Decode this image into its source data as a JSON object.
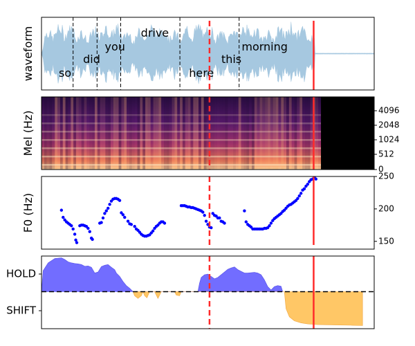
{
  "colors": {
    "waveform": "#a6c8e0",
    "f0_points": "#0000ff",
    "hold_fill": "#6b66ff",
    "shift_fill": "#ffc766",
    "marker": "#ff2a2a",
    "frame": "#000000"
  },
  "chart_data": [
    {
      "type": "area",
      "panel": "waveform",
      "ylabel": "waveform",
      "x_range": [
        0,
        100
      ],
      "y_range": [
        -1,
        1
      ],
      "words": [
        {
          "text": "so",
          "x": 5,
          "level": "low"
        },
        {
          "text": "did",
          "x": 13,
          "level": "mid"
        },
        {
          "text": "you",
          "x": 20,
          "level": "high"
        },
        {
          "text": "drive",
          "x": 32,
          "level": "top"
        },
        {
          "text": "here",
          "x": 46,
          "level": "low"
        },
        {
          "text": "this",
          "x": 55,
          "level": "mid"
        },
        {
          "text": "morning",
          "x": 65,
          "level": "high"
        }
      ],
      "word_boundaries": [
        9.5,
        16.7,
        23.8,
        41.6,
        59.4
      ],
      "speech_end": 82,
      "dashed_marker_x": 50.5,
      "solid_marker_x": 81.8
    },
    {
      "type": "heatmap",
      "panel": "mel",
      "ylabel": "Mel (Hz)",
      "x_range": [
        0,
        100
      ],
      "yticks": [
        "0",
        "512",
        "1024",
        "2048",
        "4096"
      ],
      "silence_from_x": 84,
      "dashed_marker_x": 50.5,
      "solid_marker_x": 81.8
    },
    {
      "type": "scatter",
      "panel": "f0",
      "ylabel": "F0 (Hz)",
      "x_range": [
        0,
        100
      ],
      "ylim": [
        138,
        250
      ],
      "yticks": [
        "150",
        "200",
        "250"
      ],
      "segments": [
        [
          [
            6,
            198
          ],
          [
            6.5,
            187
          ],
          [
            7,
            183
          ],
          [
            7.5,
            180
          ],
          [
            8,
            178
          ],
          [
            8.5,
            176
          ],
          [
            9,
            174
          ],
          [
            9.5,
            169
          ],
          [
            10,
            161
          ],
          [
            10.3,
            152
          ],
          [
            10.6,
            148
          ],
          [
            11.5,
            174
          ],
          [
            12,
            175
          ],
          [
            12.5,
            175
          ],
          [
            13,
            174
          ],
          [
            13.5,
            173
          ],
          [
            14,
            170
          ],
          [
            14.5,
            165
          ],
          [
            15,
            155
          ],
          [
            15.3,
            153
          ]
        ],
        [
          [
            17.5,
            178
          ],
          [
            18,
            179
          ],
          [
            18.5,
            186
          ],
          [
            19,
            193
          ],
          [
            19.5,
            197
          ],
          [
            20,
            201
          ],
          [
            20.5,
            207
          ],
          [
            21,
            212
          ],
          [
            21.5,
            215
          ],
          [
            22,
            216
          ],
          [
            22.5,
            216
          ],
          [
            23,
            215
          ],
          [
            23.5,
            213
          ],
          [
            24,
            194
          ],
          [
            24.5,
            191
          ],
          [
            25,
            187
          ],
          [
            26,
            181
          ],
          [
            26.5,
            177
          ],
          [
            27,
            176
          ],
          [
            28,
            173
          ],
          [
            28.5,
            169
          ],
          [
            29,
            167
          ],
          [
            29.5,
            164
          ],
          [
            30,
            161
          ],
          [
            30.5,
            159
          ],
          [
            31,
            158
          ],
          [
            31.5,
            158
          ],
          [
            32,
            159
          ],
          [
            32.5,
            160
          ],
          [
            33,
            163
          ],
          [
            33.5,
            166
          ],
          [
            34,
            170
          ],
          [
            34.5,
            173
          ],
          [
            35,
            175
          ],
          [
            35.5,
            178
          ],
          [
            36,
            180
          ],
          [
            36.5,
            180
          ],
          [
            37,
            178
          ]
        ],
        [
          [
            42,
            205
          ],
          [
            42.5,
            205
          ],
          [
            43,
            205
          ],
          [
            43.5,
            204
          ],
          [
            44,
            203
          ],
          [
            44.5,
            203
          ],
          [
            45,
            202
          ],
          [
            45.5,
            202
          ],
          [
            46,
            201
          ],
          [
            46.5,
            200
          ],
          [
            47,
            199
          ],
          [
            47.5,
            198
          ],
          [
            48,
            197
          ],
          [
            48.5,
            195
          ],
          [
            49,
            190
          ],
          [
            49.5,
            181
          ],
          [
            50,
            176
          ],
          [
            50.5,
            172
          ],
          [
            51,
            171
          ],
          [
            51.5,
            193
          ],
          [
            52,
            190
          ],
          [
            52.5,
            189
          ],
          [
            53,
            186
          ],
          [
            53.5,
            186
          ],
          [
            54,
            181
          ],
          [
            54.5,
            180
          ],
          [
            55,
            178
          ]
        ],
        [
          [
            61,
            197
          ],
          [
            61.5,
            180
          ],
          [
            62,
            176
          ],
          [
            62.5,
            174
          ],
          [
            63,
            172
          ],
          [
            63.5,
            169
          ],
          [
            64,
            169
          ],
          [
            64.5,
            169
          ],
          [
            65,
            169
          ],
          [
            65.5,
            169
          ],
          [
            66,
            169
          ],
          [
            66.5,
            169
          ],
          [
            67,
            170
          ],
          [
            67.5,
            170
          ],
          [
            68,
            171
          ],
          [
            68.5,
            174
          ],
          [
            69,
            178
          ],
          [
            69.5,
            182
          ],
          [
            70,
            185
          ],
          [
            70.5,
            187
          ],
          [
            71,
            189
          ],
          [
            71.5,
            191
          ],
          [
            72,
            193
          ],
          [
            72.5,
            196
          ],
          [
            73,
            198
          ],
          [
            73.5,
            201
          ],
          [
            74,
            204
          ],
          [
            74.5,
            206
          ],
          [
            75,
            207
          ],
          [
            75.5,
            209
          ],
          [
            76,
            211
          ],
          [
            76.5,
            213
          ],
          [
            77,
            216
          ],
          [
            77.5,
            220
          ],
          [
            78,
            224
          ],
          [
            78.5,
            229
          ],
          [
            79,
            231
          ],
          [
            79.5,
            235
          ],
          [
            80,
            238
          ],
          [
            80.5,
            242
          ],
          [
            81,
            245
          ],
          [
            81.5,
            246
          ],
          [
            82,
            249
          ],
          [
            82.5,
            246
          ]
        ]
      ],
      "dashed_marker_x": 50.5,
      "solid_marker_x": 81.8
    },
    {
      "type": "area",
      "panel": "turn",
      "yticks": [
        "HOLD",
        "SHIFT"
      ],
      "x_range": [
        0,
        100
      ],
      "ylim": [
        -1,
        1
      ],
      "hold": [
        [
          0,
          0
        ],
        [
          0.5,
          0.62
        ],
        [
          2,
          0.85
        ],
        [
          4,
          0.98
        ],
        [
          6,
          1.0
        ],
        [
          7,
          0.95
        ],
        [
          8,
          0.88
        ],
        [
          9,
          0.85
        ],
        [
          10,
          0.83
        ],
        [
          11,
          0.82
        ],
        [
          12,
          0.8
        ],
        [
          13,
          0.75
        ],
        [
          14,
          0.76
        ],
        [
          15,
          0.72
        ],
        [
          16,
          0.55
        ],
        [
          17,
          0.58
        ],
        [
          18,
          0.74
        ],
        [
          19,
          0.78
        ],
        [
          20,
          0.8
        ],
        [
          21,
          0.72
        ],
        [
          22,
          0.65
        ],
        [
          22.5,
          0.55
        ],
        [
          23.5,
          0.45
        ],
        [
          24.5,
          0.3
        ],
        [
          25.5,
          0.18
        ],
        [
          26.5,
          0.1
        ],
        [
          27.5,
          0
        ],
        [
          47,
          0
        ],
        [
          47.5,
          0.25
        ],
        [
          48,
          0.42
        ],
        [
          49,
          0.5
        ],
        [
          50,
          0.52
        ],
        [
          51,
          0.45
        ],
        [
          52,
          0.38
        ],
        [
          53,
          0.42
        ],
        [
          54,
          0.5
        ],
        [
          55,
          0.58
        ],
        [
          56,
          0.66
        ],
        [
          57,
          0.7
        ],
        [
          58,
          0.73
        ],
        [
          59,
          0.65
        ],
        [
          60,
          0.6
        ],
        [
          61,
          0.55
        ],
        [
          62,
          0.55
        ],
        [
          63,
          0.56
        ],
        [
          64,
          0.57
        ],
        [
          65,
          0.55
        ],
        [
          66,
          0.5
        ],
        [
          67,
          0.35
        ],
        [
          68,
          0.15
        ],
        [
          69,
          0.05
        ],
        [
          70,
          0.15
        ],
        [
          71,
          0.18
        ],
        [
          72,
          0.16
        ],
        [
          72.5,
          0
        ]
      ],
      "shift": [
        [
          27.5,
          0
        ],
        [
          28,
          -0.12
        ],
        [
          29,
          -0.2
        ],
        [
          30,
          -0.12
        ],
        [
          30.5,
          0
        ],
        [
          31,
          -0.12
        ],
        [
          31.7,
          -0.18
        ],
        [
          32.5,
          0
        ],
        [
          34,
          0
        ],
        [
          35,
          -0.2
        ],
        [
          36,
          0
        ],
        [
          40,
          0
        ],
        [
          40.5,
          -0.1
        ],
        [
          41.5,
          -0.12
        ],
        [
          42,
          0
        ],
        [
          73,
          0
        ],
        [
          73.5,
          -0.5
        ],
        [
          74.5,
          -0.74
        ],
        [
          76,
          -0.86
        ],
        [
          78,
          -0.92
        ],
        [
          80,
          -0.95
        ],
        [
          83,
          -0.97
        ],
        [
          88,
          -0.98
        ],
        [
          93,
          -0.99
        ],
        [
          96.5,
          -1.0
        ],
        [
          96.5,
          0
        ]
      ],
      "dashed_marker_x": 50.5,
      "solid_marker_x": 81.8
    }
  ]
}
